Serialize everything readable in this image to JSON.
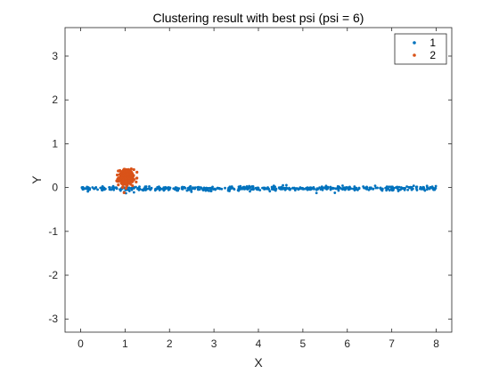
{
  "chart_data": {
    "type": "scatter",
    "title": "Clustering result with best psi (psi = 6)",
    "xlabel": "X",
    "ylabel": "Y",
    "xlim": [
      -0.35,
      8.35
    ],
    "ylim": [
      -3.3,
      3.65
    ],
    "xticks": [
      0,
      1,
      2,
      3,
      4,
      5,
      6,
      7,
      8
    ],
    "yticks": [
      -3,
      -2,
      -1,
      0,
      1,
      2,
      3
    ],
    "grid": false,
    "legend_position": "top-right",
    "series": [
      {
        "name": "1",
        "color": "#0072BD",
        "description_points": {
          "line": {
            "x_range": [
              0,
              8
            ],
            "y_center": -0.02,
            "y_jitter": 0.025,
            "count": 520
          },
          "extra": [
            [
              0.98,
              -0.1
            ],
            [
              1.02,
              -0.13
            ],
            [
              1.1,
              -0.08
            ],
            [
              1.2,
              -0.11
            ],
            [
              0.9,
              -0.07
            ],
            [
              1.05,
              -0.05
            ]
          ]
        }
      },
      {
        "name": "2",
        "color": "#D95319",
        "description_points": {
          "cluster": {
            "x_center": 1.02,
            "x_spread": 0.15,
            "y_center": 0.23,
            "y_spread": 0.12,
            "count": 260
          }
        }
      }
    ]
  }
}
